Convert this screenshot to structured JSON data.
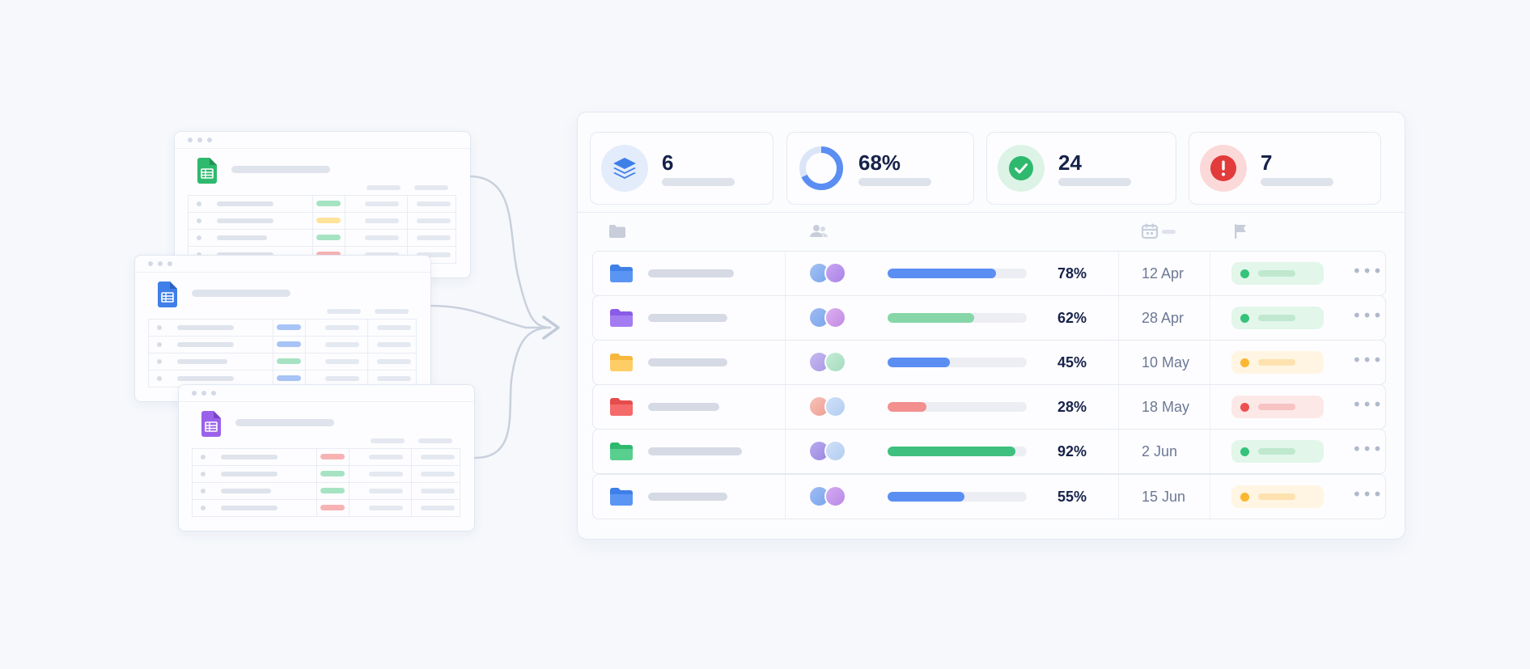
{
  "icons": {
    "sheets": [
      "green-sheets-icon",
      "blue-sheets-icon",
      "purple-sheets-icon"
    ],
    "folder": "folder-icon",
    "people": "people-icon",
    "calendar": "calendar-icon",
    "flag": "flag-icon",
    "more": "more-horizontal-icon"
  },
  "colors": {
    "green": "#34c27f",
    "blue": "#4e8cf0",
    "purple": "#9a6cf0",
    "yellow": "#ffc857",
    "red": "#f07474",
    "accent_blue": "#5b8ef2"
  },
  "stats": [
    {
      "value": "6",
      "icon": "layers-icon"
    },
    {
      "value": "68%",
      "icon": "donut-progress-icon",
      "progress": 0.68
    },
    {
      "value": "24",
      "icon": "check-circle-icon"
    },
    {
      "value": "7",
      "icon": "alert-circle-icon"
    }
  ],
  "rows": [
    {
      "folder_color": "blue",
      "progress": 0.78,
      "percent": "78%",
      "date": "12 Apr",
      "status": "green"
    },
    {
      "folder_color": "purple",
      "progress": 0.62,
      "percent": "62%",
      "date": "28 Apr",
      "status": "green"
    },
    {
      "folder_color": "yellow",
      "progress": 0.45,
      "percent": "45%",
      "date": "10 May",
      "status": "yellow"
    },
    {
      "folder_color": "red",
      "progress": 0.28,
      "percent": "28%",
      "date": "18 May",
      "status": "red"
    },
    {
      "folder_color": "green",
      "progress": 0.92,
      "percent": "92%",
      "date": "2 Jun",
      "status": "green"
    },
    {
      "folder_color": "blue",
      "progress": 0.55,
      "percent": "55%",
      "date": "15 Jun",
      "status": "yellow"
    }
  ]
}
